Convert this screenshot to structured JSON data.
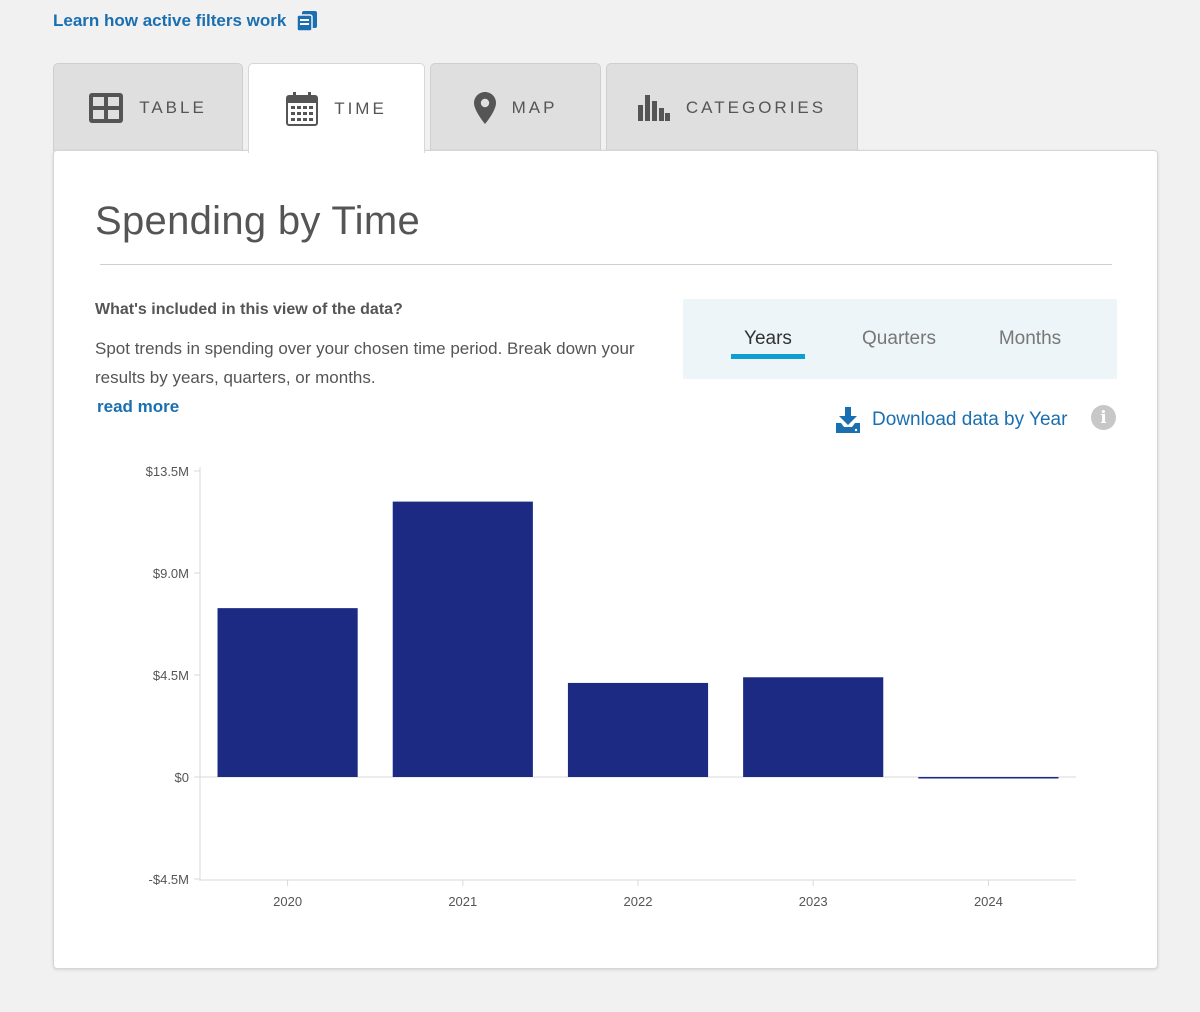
{
  "filters_link": {
    "label": "Learn how active filters work",
    "icon": "book-icon"
  },
  "tabs": [
    {
      "label": "TABLE",
      "icon": "table-icon",
      "active": false
    },
    {
      "label": "TIME",
      "icon": "calendar-icon",
      "active": true
    },
    {
      "label": "MAP",
      "icon": "map-pin-icon",
      "active": false
    },
    {
      "label": "CATEGORIES",
      "icon": "bar-chart-icon",
      "active": false
    }
  ],
  "section": {
    "title": "Spending by Time",
    "info_heading": "What's included in this view of the data?",
    "info_text": "Spot trends in spending over your chosen time period. Break down your results by years, quarters, or months.",
    "read_more": "read more"
  },
  "period_toggle": {
    "options": [
      "Years",
      "Quarters",
      "Months"
    ],
    "selected": "Years"
  },
  "download": {
    "label": "Download data by Year",
    "icon": "download-icon"
  },
  "info_icon": "info-icon",
  "colors": {
    "accent": "#1a6fb0",
    "bar": "#1c2a84",
    "active_underline": "#0e9fd0",
    "toggle_bg": "#edf5f8"
  },
  "chart_data": {
    "type": "bar",
    "categories": [
      "2020",
      "2021",
      "2022",
      "2023",
      "2024"
    ],
    "values": [
      7.45,
      12.15,
      4.15,
      4.4,
      -0.05
    ],
    "ytick_labels": [
      "$13.5M",
      "$9.0M",
      "$4.5M",
      "$0",
      "-$4.5M"
    ],
    "yticks": [
      13.5,
      9.0,
      4.5,
      0,
      -4.5
    ],
    "ylim": [
      -4.5,
      13.5
    ],
    "unit": "$M",
    "title": "",
    "xlabel": "",
    "ylabel": "",
    "grid": false,
    "legend": "none"
  }
}
